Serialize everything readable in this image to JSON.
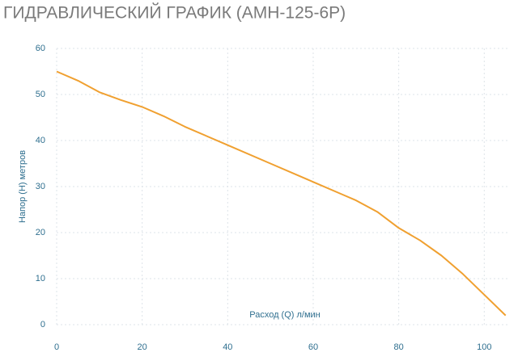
{
  "chart_data": {
    "type": "line",
    "title": "ГИДРАВЛИЧЕСКИЙ ГРАФИК (АМН-125-6Р)",
    "x_label": "Расход (Q) л/мин",
    "y_label": "Напор (Н) метров",
    "x": [
      0,
      5,
      10,
      15,
      20,
      25,
      30,
      40,
      50,
      60,
      67,
      70,
      75,
      80,
      85,
      90,
      95,
      100,
      105
    ],
    "series": [
      {
        "name": "АМН-125-6Р",
        "color": "#f0a030",
        "values": [
          55,
          53,
          50.5,
          48.8,
          47.3,
          45.3,
          43,
          39,
          35,
          31,
          28.2,
          27,
          24.5,
          21,
          18.3,
          15,
          11,
          6.5,
          2
        ]
      }
    ],
    "xlim": [
      0,
      106
    ],
    "xticks": [
      0,
      20,
      40,
      60,
      80,
      100
    ],
    "ylim": [
      0,
      60
    ],
    "yticks": [
      0,
      10,
      20,
      30,
      40,
      50,
      60
    ],
    "grid": true
  }
}
